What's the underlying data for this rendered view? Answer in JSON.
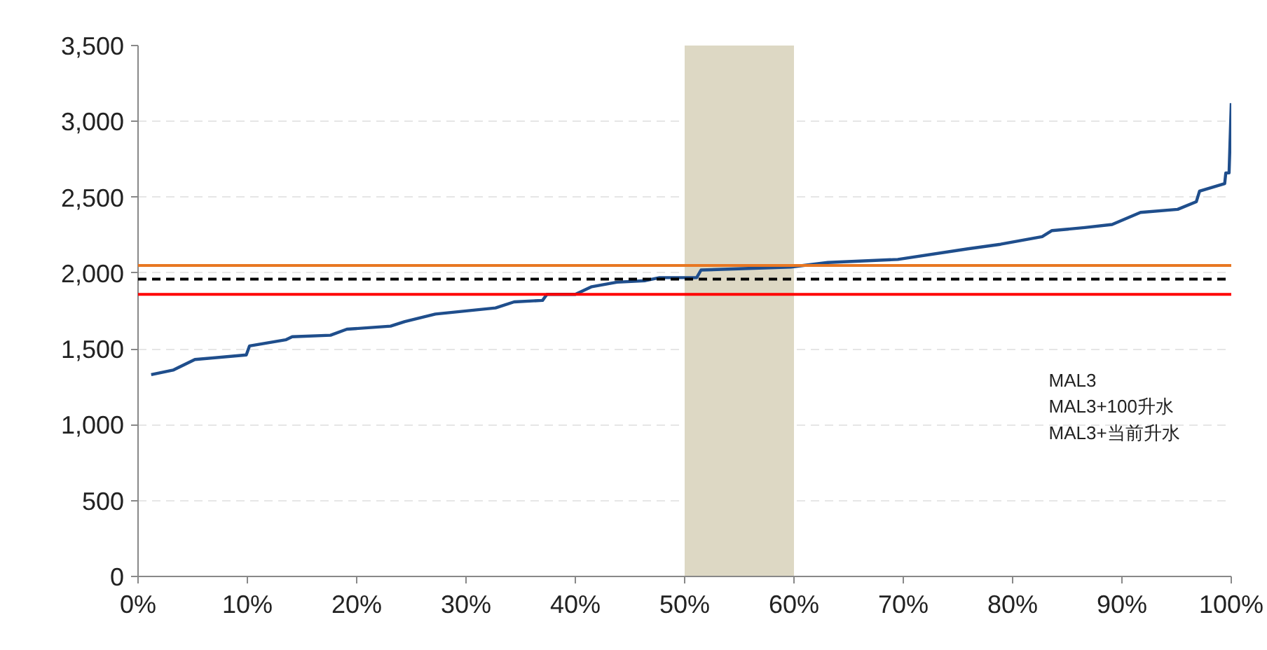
{
  "chart_data": {
    "type": "line",
    "x": [
      1.2,
      3.2,
      5.2,
      9.9,
      10.2,
      13.5,
      14.1,
      17.6,
      19.1,
      23.1,
      24.4,
      27.2,
      32.7,
      34.4,
      37.0,
      37.4,
      40.0,
      41.5,
      43.8,
      46.4,
      47.7,
      51.1,
      51.5,
      59.7,
      63.1,
      69.5,
      75.9,
      78.9,
      82.7,
      83.6,
      86.6,
      89.1,
      91.7,
      95.1,
      96.8,
      97.1,
      99.4,
      99.5,
      99.8,
      100
    ],
    "series": [
      {
        "color": "#1f4e8c",
        "values": [
          1330,
          1360,
          1430,
          1460,
          1520,
          1560,
          1580,
          1590,
          1630,
          1650,
          1680,
          1730,
          1770,
          1810,
          1820,
          1860,
          1860,
          1910,
          1940,
          1950,
          1970,
          1970,
          2020,
          2040,
          2070,
          2090,
          2160,
          2190,
          2240,
          2280,
          2300,
          2320,
          2400,
          2420,
          2470,
          2540,
          2590,
          2660,
          2660,
          3120
        ]
      }
    ],
    "annotations": [
      "MAL3",
      "MAL3+100升水",
      "MAL3+当前升水"
    ],
    "xlim": [
      0,
      100
    ],
    "ylim": [
      0,
      3500
    ],
    "xticks": [
      {
        "value": 0,
        "label": "0%"
      },
      {
        "value": 10,
        "label": "10%"
      },
      {
        "value": 20,
        "label": "20%"
      },
      {
        "value": 30,
        "label": "30%"
      },
      {
        "value": 40,
        "label": "40%"
      },
      {
        "value": 50,
        "label": "50%"
      },
      {
        "value": 60,
        "label": "60%"
      },
      {
        "value": 70,
        "label": "70%"
      },
      {
        "value": 80,
        "label": "80%"
      },
      {
        "value": 90,
        "label": "90%"
      },
      {
        "value": 100,
        "label": "100%"
      }
    ],
    "yticks": [
      {
        "value": 0,
        "label": "0"
      },
      {
        "value": 500,
        "label": "500"
      },
      {
        "value": 1000,
        "label": "1,000"
      },
      {
        "value": 1500,
        "label": "1,500"
      },
      {
        "value": 2000,
        "label": "2,000"
      },
      {
        "value": 2500,
        "label": "2,500"
      },
      {
        "value": 3000,
        "label": "3,000"
      },
      {
        "value": 3500,
        "label": "3,500"
      }
    ],
    "ref_lines": [
      {
        "axis": "y",
        "value": 1860,
        "color": "#ff0000",
        "line_style": "solid"
      },
      {
        "axis": "y",
        "value": 1960,
        "color": "#000000",
        "line_style": "dashed"
      },
      {
        "axis": "y",
        "value": 2050,
        "color": "#e87722",
        "line_style": "solid"
      }
    ],
    "bands": [
      {
        "axis": "x",
        "from": 50,
        "to": 60,
        "color": "#ddd8c4"
      }
    ],
    "grid": "y",
    "line_style": "solid"
  }
}
